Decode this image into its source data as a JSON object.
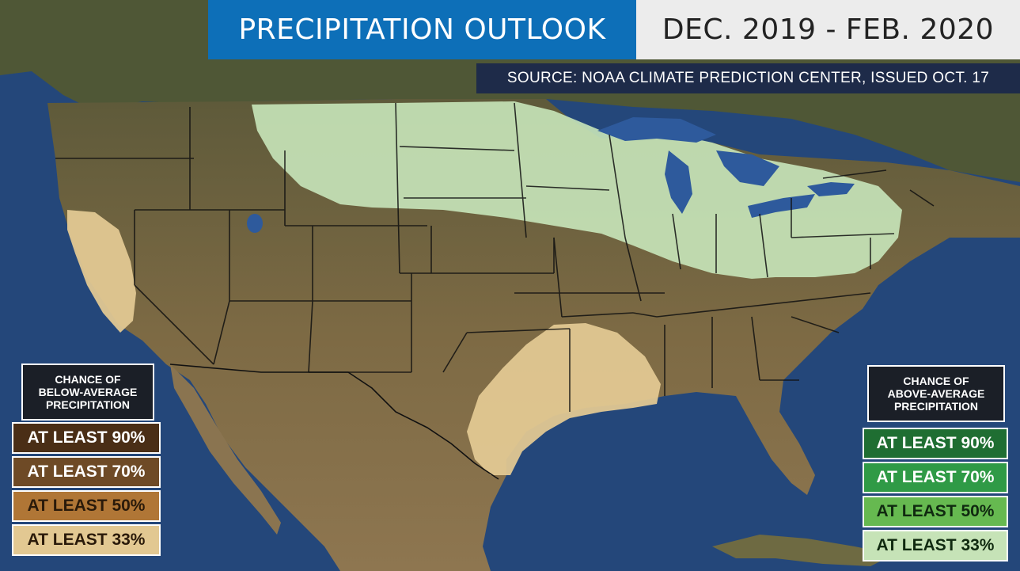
{
  "header": {
    "title": "PRECIPITATION OUTLOOK",
    "date_range": "DEC. 2019 - FEB. 2020",
    "source": "SOURCE: NOAA CLIMATE PREDICTION CENTER, ISSUED OCT. 17"
  },
  "legend_below": {
    "heading_lines": [
      "CHANCE OF",
      "BELOW-AVERAGE",
      "PRECIPITATION"
    ],
    "rows": [
      {
        "label": "AT LEAST 90%",
        "color": "#4a2e16",
        "text_color": "#ffffff"
      },
      {
        "label": "AT LEAST 70%",
        "color": "#6e4a26",
        "text_color": "#ffffff"
      },
      {
        "label": "AT LEAST 50%",
        "color": "#b07636",
        "text_color": "#2a1a0a"
      },
      {
        "label": "AT LEAST 33%",
        "color": "#e2c892",
        "text_color": "#2a1a0a"
      }
    ]
  },
  "legend_above": {
    "heading_lines": [
      "CHANCE OF",
      "ABOVE-AVERAGE",
      "PRECIPITATION"
    ],
    "rows": [
      {
        "label": "AT LEAST 90%",
        "color": "#1f6e32",
        "text_color": "#ffffff"
      },
      {
        "label": "AT LEAST 70%",
        "color": "#2f9a46",
        "text_color": "#ffffff"
      },
      {
        "label": "AT LEAST 50%",
        "color": "#66b950",
        "text_color": "#102a10"
      },
      {
        "label": "AT LEAST 33%",
        "color": "#c6e3b7",
        "text_color": "#102a10"
      }
    ]
  },
  "colors": {
    "ocean": "#24477a",
    "land": "#7d6a44",
    "desert_land": "#9c8660",
    "above_33": "#c6e3b7",
    "below_33": "#e2c892",
    "lakes": "#2e5a9c"
  }
}
